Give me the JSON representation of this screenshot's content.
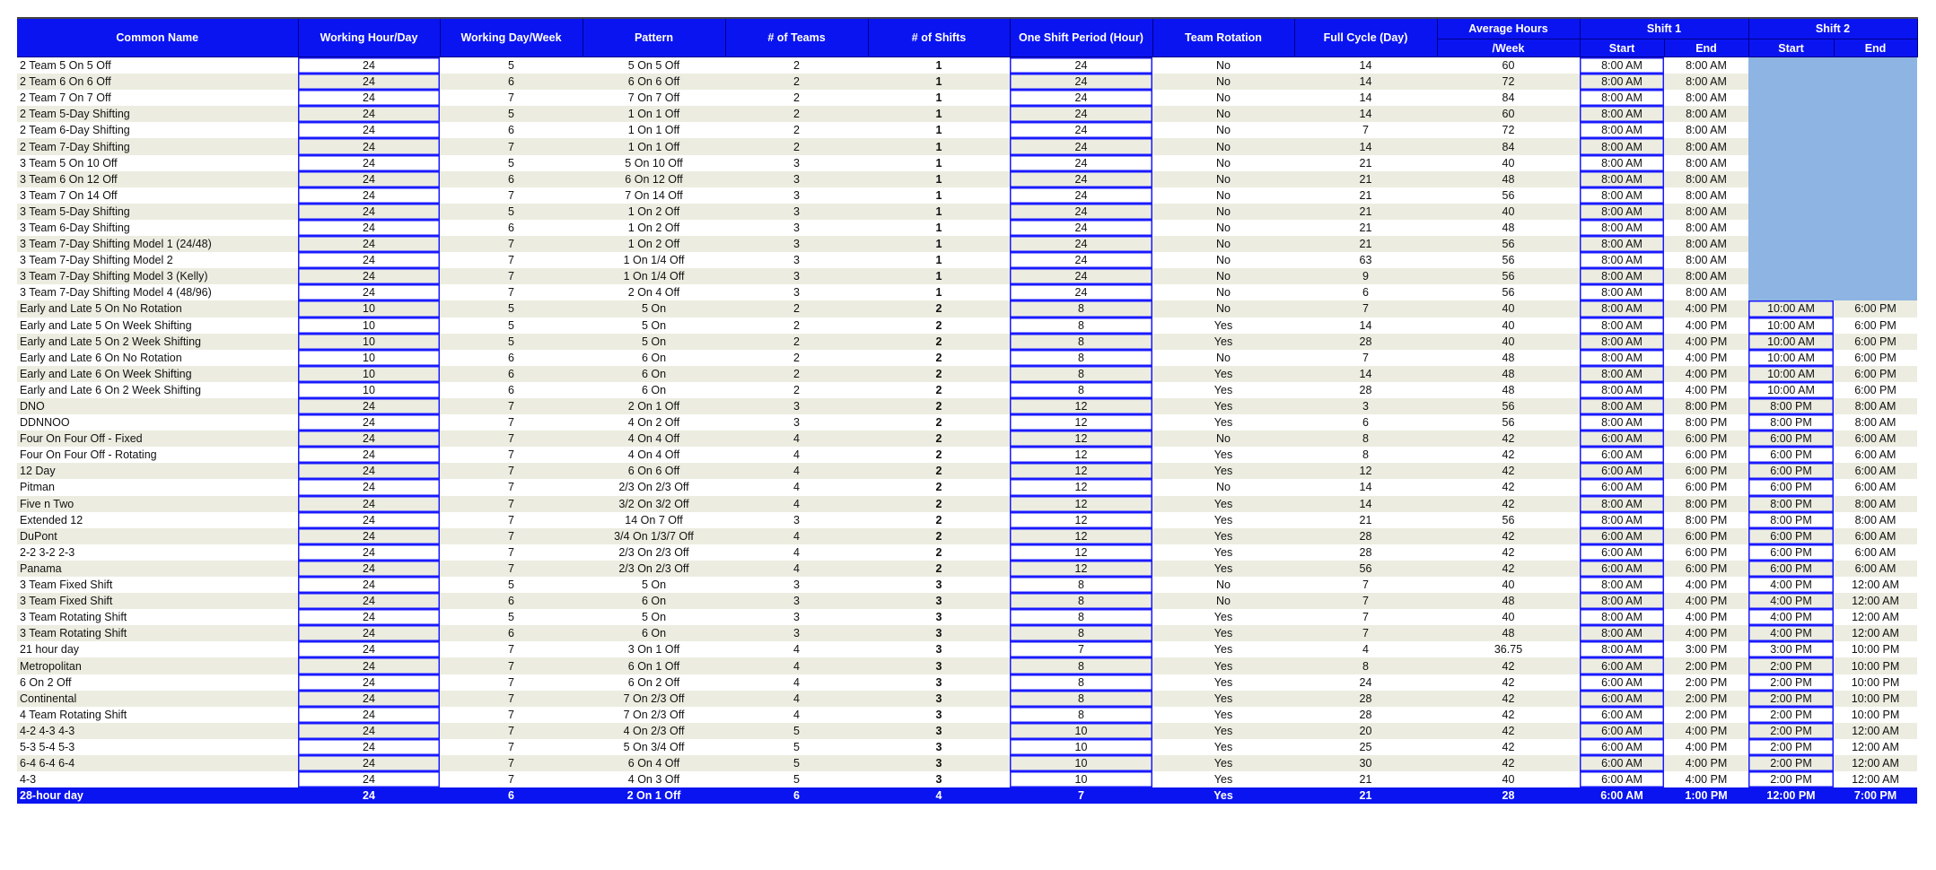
{
  "header": {
    "common_name": "Common Name",
    "working_hour_day": "Working Hour/Day",
    "working_day_week": "Working Day/Week",
    "pattern": "Pattern",
    "num_teams": "# of Teams",
    "num_shifts": "# of Shifts",
    "shift_period": "One Shift Period (Hour)",
    "team_rotation": "Team Rotation",
    "full_cycle": "Full Cycle (Day)",
    "avg_hours_top": "Average Hours",
    "avg_hours_bottom": "/Week",
    "shift1": "Shift 1",
    "shift2": "Shift 2",
    "start": "Start",
    "end": "End"
  },
  "colors": {
    "header_blue": "#0a14f0",
    "alt_row": "#ecede0",
    "empty_shift2": "#8db4e2",
    "cell_border": "#1a1aff"
  },
  "rows": [
    [
      "2 Team 5 On 5 Off",
      "24",
      "5",
      "5 On 5 Off",
      "2",
      "1",
      "24",
      "No",
      "14",
      "60",
      "8:00 AM",
      "8:00 AM",
      "",
      ""
    ],
    [
      "2 Team 6 On 6 Off",
      "24",
      "6",
      "6 On 6 Off",
      "2",
      "1",
      "24",
      "No",
      "14",
      "72",
      "8:00 AM",
      "8:00 AM",
      "",
      ""
    ],
    [
      "2 Team 7 On 7 Off",
      "24",
      "7",
      "7 On 7 Off",
      "2",
      "1",
      "24",
      "No",
      "14",
      "84",
      "8:00 AM",
      "8:00 AM",
      "",
      ""
    ],
    [
      "2 Team 5-Day Shifting",
      "24",
      "5",
      "1 On 1 Off",
      "2",
      "1",
      "24",
      "No",
      "14",
      "60",
      "8:00 AM",
      "8:00 AM",
      "",
      ""
    ],
    [
      "2 Team 6-Day Shifting",
      "24",
      "6",
      "1 On 1 Off",
      "2",
      "1",
      "24",
      "No",
      "7",
      "72",
      "8:00 AM",
      "8:00 AM",
      "",
      ""
    ],
    [
      "2 Team 7-Day Shifting",
      "24",
      "7",
      "1 On 1 Off",
      "2",
      "1",
      "24",
      "No",
      "14",
      "84",
      "8:00 AM",
      "8:00 AM",
      "",
      ""
    ],
    [
      "3 Team 5 On 10 Off",
      "24",
      "5",
      "5 On 10 Off",
      "3",
      "1",
      "24",
      "No",
      "21",
      "40",
      "8:00 AM",
      "8:00 AM",
      "",
      ""
    ],
    [
      "3 Team 6 On 12 Off",
      "24",
      "6",
      "6 On 12 Off",
      "3",
      "1",
      "24",
      "No",
      "21",
      "48",
      "8:00 AM",
      "8:00 AM",
      "",
      ""
    ],
    [
      "3 Team 7 On 14 Off",
      "24",
      "7",
      "7 On 14 Off",
      "3",
      "1",
      "24",
      "No",
      "21",
      "56",
      "8:00 AM",
      "8:00 AM",
      "",
      ""
    ],
    [
      "3 Team 5-Day Shifting",
      "24",
      "5",
      "1 On 2 Off",
      "3",
      "1",
      "24",
      "No",
      "21",
      "40",
      "8:00 AM",
      "8:00 AM",
      "",
      ""
    ],
    [
      "3 Team 6-Day Shifting",
      "24",
      "6",
      "1 On 2 Off",
      "3",
      "1",
      "24",
      "No",
      "21",
      "48",
      "8:00 AM",
      "8:00 AM",
      "",
      ""
    ],
    [
      "3 Team 7-Day Shifting Model 1 (24/48)",
      "24",
      "7",
      "1 On 2 Off",
      "3",
      "1",
      "24",
      "No",
      "21",
      "56",
      "8:00 AM",
      "8:00 AM",
      "",
      ""
    ],
    [
      "3 Team 7-Day Shifting Model 2",
      "24",
      "7",
      "1 On 1/4 Off",
      "3",
      "1",
      "24",
      "No",
      "63",
      "56",
      "8:00 AM",
      "8:00 AM",
      "",
      ""
    ],
    [
      "3 Team 7-Day Shifting Model 3 (Kelly)",
      "24",
      "7",
      "1 On 1/4 Off",
      "3",
      "1",
      "24",
      "No",
      "9",
      "56",
      "8:00 AM",
      "8:00 AM",
      "",
      ""
    ],
    [
      "3 Team 7-Day Shifting Model 4 (48/96)",
      "24",
      "7",
      "2 On 4 Off",
      "3",
      "1",
      "24",
      "No",
      "6",
      "56",
      "8:00 AM",
      "8:00 AM",
      "",
      ""
    ],
    [
      "Early and Late 5 On No Rotation",
      "10",
      "5",
      "5 On",
      "2",
      "2",
      "8",
      "No",
      "7",
      "40",
      "8:00 AM",
      "4:00 PM",
      "10:00 AM",
      "6:00 PM"
    ],
    [
      "Early and Late 5 On Week Shifting",
      "10",
      "5",
      "5 On",
      "2",
      "2",
      "8",
      "Yes",
      "14",
      "40",
      "8:00 AM",
      "4:00 PM",
      "10:00 AM",
      "6:00 PM"
    ],
    [
      "Early and Late 5 On 2 Week Shifting",
      "10",
      "5",
      "5 On",
      "2",
      "2",
      "8",
      "Yes",
      "28",
      "40",
      "8:00 AM",
      "4:00 PM",
      "10:00 AM",
      "6:00 PM"
    ],
    [
      "Early and Late 6 On No Rotation",
      "10",
      "6",
      "6 On",
      "2",
      "2",
      "8",
      "No",
      "7",
      "48",
      "8:00 AM",
      "4:00 PM",
      "10:00 AM",
      "6:00 PM"
    ],
    [
      "Early and Late 6 On Week Shifting",
      "10",
      "6",
      "6 On",
      "2",
      "2",
      "8",
      "Yes",
      "14",
      "48",
      "8:00 AM",
      "4:00 PM",
      "10:00 AM",
      "6:00 PM"
    ],
    [
      "Early and Late 6 On 2 Week Shifting",
      "10",
      "6",
      "6 On",
      "2",
      "2",
      "8",
      "Yes",
      "28",
      "48",
      "8:00 AM",
      "4:00 PM",
      "10:00 AM",
      "6:00 PM"
    ],
    [
      "DNO",
      "24",
      "7",
      "2 On 1 Off",
      "3",
      "2",
      "12",
      "Yes",
      "3",
      "56",
      "8:00 AM",
      "8:00 PM",
      "8:00 PM",
      "8:00 AM"
    ],
    [
      "DDNNOO",
      "24",
      "7",
      "4 On 2 Off",
      "3",
      "2",
      "12",
      "Yes",
      "6",
      "56",
      "8:00 AM",
      "8:00 PM",
      "8:00 PM",
      "8:00 AM"
    ],
    [
      "Four On Four Off - Fixed",
      "24",
      "7",
      "4 On 4 Off",
      "4",
      "2",
      "12",
      "No",
      "8",
      "42",
      "6:00 AM",
      "6:00 PM",
      "6:00 PM",
      "6:00 AM"
    ],
    [
      "Four On Four Off - Rotating",
      "24",
      "7",
      "4 On 4 Off",
      "4",
      "2",
      "12",
      "Yes",
      "8",
      "42",
      "6:00 AM",
      "6:00 PM",
      "6:00 PM",
      "6:00 AM"
    ],
    [
      "12 Day",
      "24",
      "7",
      "6 On 6 Off",
      "4",
      "2",
      "12",
      "Yes",
      "12",
      "42",
      "6:00 AM",
      "6:00 PM",
      "6:00 PM",
      "6:00 AM"
    ],
    [
      "Pitman",
      "24",
      "7",
      "2/3 On 2/3 Off",
      "4",
      "2",
      "12",
      "No",
      "14",
      "42",
      "6:00 AM",
      "6:00 PM",
      "6:00 PM",
      "6:00 AM"
    ],
    [
      "Five n Two",
      "24",
      "7",
      "3/2 On 3/2 Off",
      "4",
      "2",
      "12",
      "Yes",
      "14",
      "42",
      "8:00 AM",
      "8:00 PM",
      "8:00 PM",
      "8:00 AM"
    ],
    [
      "Extended 12",
      "24",
      "7",
      "14 On 7 Off",
      "3",
      "2",
      "12",
      "Yes",
      "21",
      "56",
      "8:00 AM",
      "8:00 PM",
      "8:00 PM",
      "8:00 AM"
    ],
    [
      "DuPont",
      "24",
      "7",
      "3/4 On 1/3/7 Off",
      "4",
      "2",
      "12",
      "Yes",
      "28",
      "42",
      "6:00 AM",
      "6:00 PM",
      "6:00 PM",
      "6:00 AM"
    ],
    [
      "2-2 3-2 2-3",
      "24",
      "7",
      "2/3 On 2/3 Off",
      "4",
      "2",
      "12",
      "Yes",
      "28",
      "42",
      "6:00 AM",
      "6:00 PM",
      "6:00 PM",
      "6:00 AM"
    ],
    [
      "Panama",
      "24",
      "7",
      "2/3 On 2/3 Off",
      "4",
      "2",
      "12",
      "Yes",
      "56",
      "42",
      "6:00 AM",
      "6:00 PM",
      "6:00 PM",
      "6:00 AM"
    ],
    [
      "3 Team Fixed Shift",
      "24",
      "5",
      "5 On",
      "3",
      "3",
      "8",
      "No",
      "7",
      "40",
      "8:00 AM",
      "4:00 PM",
      "4:00 PM",
      "12:00 AM"
    ],
    [
      "3 Team Fixed Shift",
      "24",
      "6",
      "6 On",
      "3",
      "3",
      "8",
      "No",
      "7",
      "48",
      "8:00 AM",
      "4:00 PM",
      "4:00 PM",
      "12:00 AM"
    ],
    [
      "3 Team Rotating Shift",
      "24",
      "5",
      "5 On",
      "3",
      "3",
      "8",
      "Yes",
      "7",
      "40",
      "8:00 AM",
      "4:00 PM",
      "4:00 PM",
      "12:00 AM"
    ],
    [
      "3 Team Rotating Shift",
      "24",
      "6",
      "6 On",
      "3",
      "3",
      "8",
      "Yes",
      "7",
      "48",
      "8:00 AM",
      "4:00 PM",
      "4:00 PM",
      "12:00 AM"
    ],
    [
      "21 hour day",
      "24",
      "7",
      "3 On 1 Off",
      "4",
      "3",
      "7",
      "Yes",
      "4",
      "36.75",
      "8:00 AM",
      "3:00 PM",
      "3:00 PM",
      "10:00 PM"
    ],
    [
      "Metropolitan",
      "24",
      "7",
      "6 On 1 Off",
      "4",
      "3",
      "8",
      "Yes",
      "8",
      "42",
      "6:00 AM",
      "2:00 PM",
      "2:00 PM",
      "10:00 PM"
    ],
    [
      "6 On 2 Off",
      "24",
      "7",
      "6 On 2 Off",
      "4",
      "3",
      "8",
      "Yes",
      "24",
      "42",
      "6:00 AM",
      "2:00 PM",
      "2:00 PM",
      "10:00 PM"
    ],
    [
      "Continental",
      "24",
      "7",
      "7 On 2/3 Off",
      "4",
      "3",
      "8",
      "Yes",
      "28",
      "42",
      "6:00 AM",
      "2:00 PM",
      "2:00 PM",
      "10:00 PM"
    ],
    [
      "4 Team Rotating Shift",
      "24",
      "7",
      "7 On 2/3 Off",
      "4",
      "3",
      "8",
      "Yes",
      "28",
      "42",
      "6:00 AM",
      "2:00 PM",
      "2:00 PM",
      "10:00 PM"
    ],
    [
      "4-2 4-3 4-3",
      "24",
      "7",
      "4 On 2/3 Off",
      "5",
      "3",
      "10",
      "Yes",
      "20",
      "42",
      "6:00 AM",
      "4:00 PM",
      "2:00 PM",
      "12:00 AM"
    ],
    [
      "5-3 5-4 5-3",
      "24",
      "7",
      "5 On 3/4 Off",
      "5",
      "3",
      "10",
      "Yes",
      "25",
      "42",
      "6:00 AM",
      "4:00 PM",
      "2:00 PM",
      "12:00 AM"
    ],
    [
      "6-4 6-4 6-4",
      "24",
      "7",
      "6 On 4 Off",
      "5",
      "3",
      "10",
      "Yes",
      "30",
      "42",
      "6:00 AM",
      "4:00 PM",
      "2:00 PM",
      "12:00 AM"
    ],
    [
      "4-3",
      "24",
      "7",
      "4 On 3 Off",
      "5",
      "3",
      "10",
      "Yes",
      "21",
      "40",
      "6:00 AM",
      "4:00 PM",
      "2:00 PM",
      "12:00 AM"
    ],
    [
      "28-hour day",
      "24",
      "6",
      "2 On 1 Off",
      "6",
      "4",
      "7",
      "Yes",
      "21",
      "28",
      "6:00 AM",
      "1:00 PM",
      "12:00 PM",
      "7:00 PM"
    ]
  ],
  "highlighted_row": "28-hour day"
}
